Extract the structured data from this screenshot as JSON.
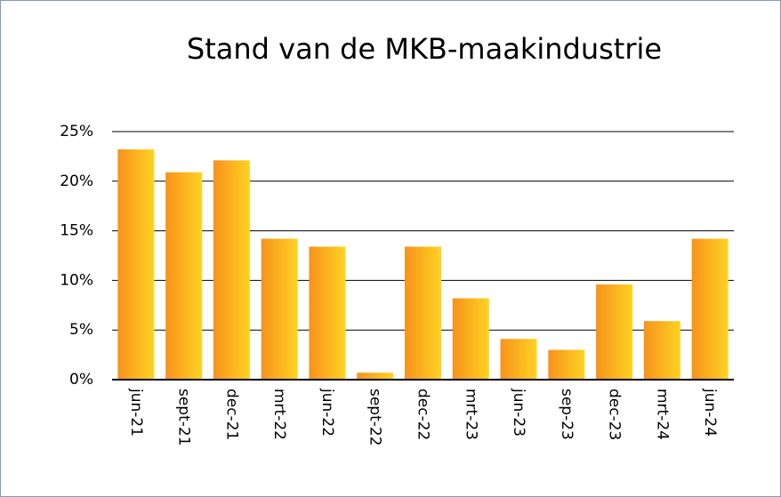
{
  "chart_data": {
    "type": "bar",
    "title": "Stand van de MKB-maakindustrie",
    "categories": [
      "jun-21",
      "sept-21",
      "dec-21",
      "mrt-22",
      "jun-22",
      "sept-22",
      "dec-22",
      "mrt-23",
      "jun-23",
      "sep-23",
      "dec-23",
      "mrt-24",
      "jun-24"
    ],
    "values": [
      23.2,
      20.9,
      22.1,
      14.2,
      13.4,
      0.7,
      13.4,
      8.2,
      4.1,
      3.0,
      9.6,
      5.9,
      14.2
    ],
    "gradient": [
      "#f7921c",
      "#ffd323"
    ],
    "ylim": [
      0,
      25
    ],
    "yticks": [
      {
        "value": 0,
        "label": "0%"
      },
      {
        "value": 5,
        "label": "5%"
      },
      {
        "value": 10,
        "label": "10%"
      },
      {
        "value": 15,
        "label": "15%"
      },
      {
        "value": 20,
        "label": "20%"
      },
      {
        "value": 25,
        "label": "25%"
      }
    ],
    "grid": true
  }
}
